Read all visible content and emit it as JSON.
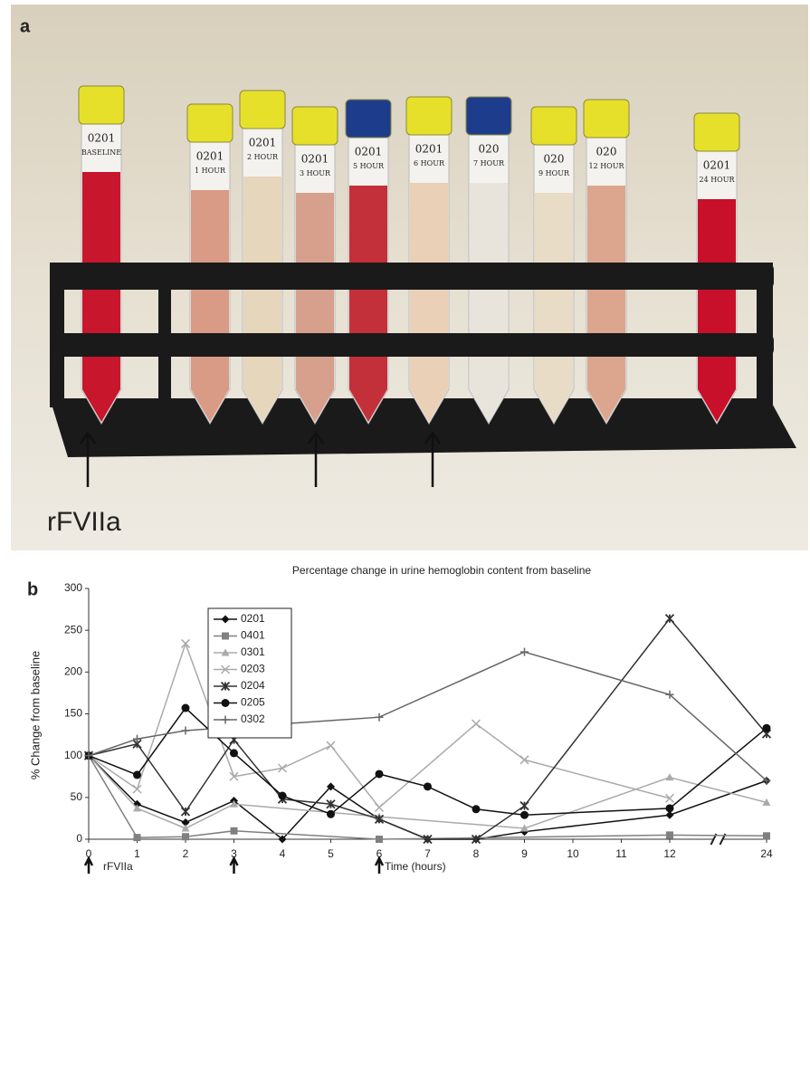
{
  "panel_a": {
    "label": "a",
    "annotation": "rFVIIa",
    "tubes": [
      {
        "id": "0201",
        "time": "BASELINE",
        "cap": "#e6e02a",
        "liquid": "#c8162c"
      },
      {
        "id": "0201",
        "time": "1 HOUR",
        "cap": "#e6e02a",
        "liquid": "#d99a86"
      },
      {
        "id": "0201",
        "time": "2 HOUR",
        "cap": "#e6e02a",
        "liquid": "#e6d6bc"
      },
      {
        "id": "0201",
        "time": "3 HOUR",
        "cap": "#e6e02a",
        "liquid": "#d6a08c"
      },
      {
        "id": "0201",
        "time": "5 HOUR",
        "cap": "#1e3c8c",
        "liquid": "#c4303a"
      },
      {
        "id": "0201",
        "time": "6 HOUR",
        "cap": "#e6e02a",
        "liquid": "#ead0b6"
      },
      {
        "id": "020",
        "time": "7 HOUR",
        "cap": "#1e3c8c",
        "liquid": "#e8e4dc"
      },
      {
        "id": "020",
        "time": "9 HOUR",
        "cap": "#e6e02a",
        "liquid": "#e8dcc6"
      },
      {
        "id": "020",
        "time": "12 HOUR",
        "cap": "#e6e02a",
        "liquid": "#dca68e"
      },
      {
        "id": "0201",
        "time": "24 HOUR",
        "cap": "#e6e02a",
        "liquid": "#c8102a"
      }
    ]
  },
  "chart_data": {
    "type": "line",
    "panel_label": "b",
    "title": "Percentage change in urine hemoglobin content from baseline",
    "y_label": "% Change from baseline",
    "x_label": "Time (hours)",
    "dose_label": "rFVIIa",
    "dose_times": [
      0,
      3,
      6
    ],
    "xlim": [
      0,
      24
    ],
    "xticks": [
      0,
      1,
      2,
      3,
      4,
      5,
      6,
      7,
      8,
      9,
      10,
      11,
      12,
      24
    ],
    "x_break": 12,
    "ylim": [
      0,
      300
    ],
    "yticks": [
      0,
      50,
      100,
      150,
      200,
      250,
      300
    ],
    "series": [
      {
        "name": "0201",
        "color": "#111111",
        "marker": "diamond",
        "x": [
          0,
          1,
          2,
          3,
          4,
          5,
          6,
          7,
          8,
          9,
          12,
          24
        ],
        "values": [
          100,
          42,
          20,
          46,
          0,
          63,
          24,
          0,
          0,
          9,
          29,
          70
        ]
      },
      {
        "name": "0401",
        "color": "#808080",
        "marker": "square",
        "x": [
          0,
          1,
          2,
          3,
          6,
          12,
          24
        ],
        "values": [
          100,
          2,
          3,
          10,
          0,
          5,
          4
        ]
      },
      {
        "name": "0301",
        "color": "#aaaaaa",
        "marker": "triangle",
        "x": [
          0,
          1,
          2,
          3,
          6,
          9,
          12,
          24
        ],
        "values": [
          100,
          37,
          13,
          42,
          27,
          13,
          74,
          44
        ]
      },
      {
        "name": "0203",
        "color": "#aaaaaa",
        "marker": "x",
        "x": [
          0,
          1,
          2,
          3,
          4,
          5,
          6,
          8,
          9,
          12
        ],
        "values": [
          100,
          60,
          234,
          75,
          85,
          112,
          38,
          138,
          95,
          49
        ]
      },
      {
        "name": "0204",
        "color": "#333333",
        "marker": "star",
        "x": [
          0,
          1,
          2,
          3,
          4,
          5,
          6,
          7,
          8,
          9,
          12,
          24
        ],
        "values": [
          100,
          114,
          33,
          119,
          48,
          42,
          24,
          0,
          0,
          40,
          264,
          126
        ]
      },
      {
        "name": "0205",
        "color": "#111111",
        "marker": "circle",
        "x": [
          0,
          1,
          2,
          3,
          4,
          5,
          6,
          7,
          8,
          9,
          12,
          24
        ],
        "values": [
          100,
          77,
          157,
          103,
          52,
          30,
          78,
          63,
          36,
          29,
          37,
          133
        ]
      },
      {
        "name": "0302",
        "color": "#666666",
        "marker": "plus",
        "x": [
          0,
          1,
          2,
          6,
          9,
          12,
          24
        ],
        "values": [
          100,
          120,
          130,
          146,
          224,
          173,
          70
        ]
      }
    ]
  }
}
